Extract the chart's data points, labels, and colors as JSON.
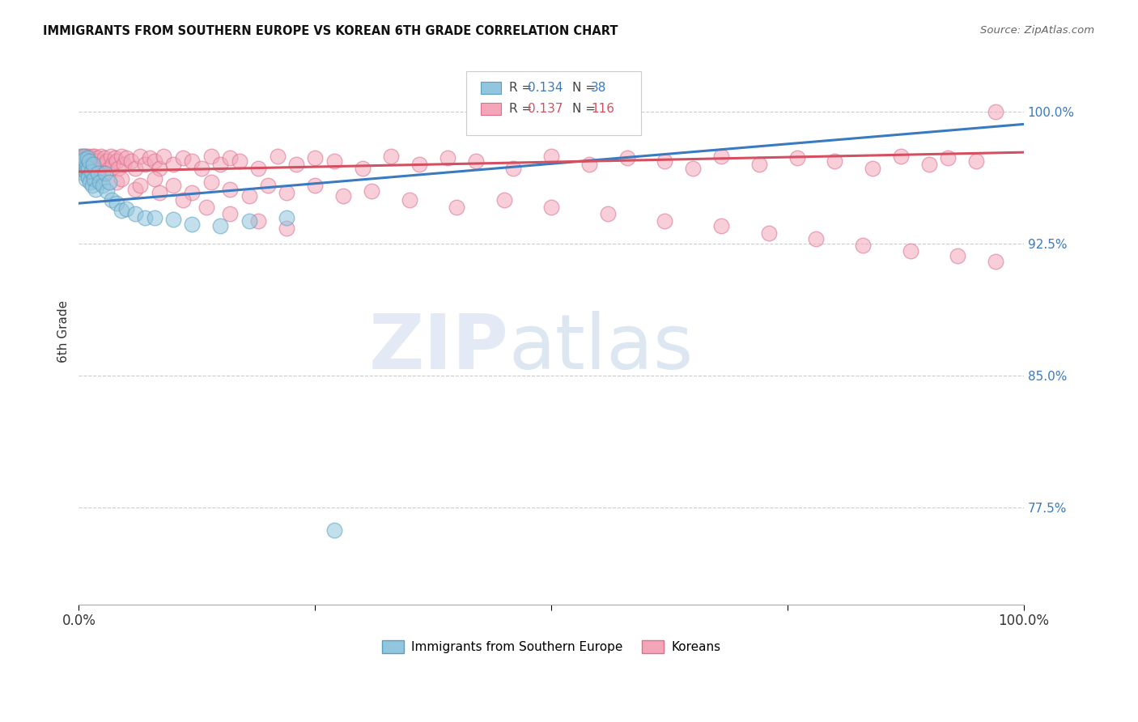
{
  "title": "IMMIGRANTS FROM SOUTHERN EUROPE VS KOREAN 6TH GRADE CORRELATION CHART",
  "source": "Source: ZipAtlas.com",
  "ylabel": "6th Grade",
  "xlim": [
    0.0,
    1.0
  ],
  "ylim": [
    0.72,
    1.03
  ],
  "yticks": [
    0.775,
    0.85,
    0.925,
    1.0
  ],
  "ytick_labels": [
    "77.5%",
    "85.0%",
    "92.5%",
    "100.0%"
  ],
  "legend_labels": [
    "Immigrants from Southern Europe",
    "Koreans"
  ],
  "blue_R": "0.134",
  "blue_N": "38",
  "pink_R": "0.137",
  "pink_N": "116",
  "blue_color": "#92c5de",
  "pink_color": "#f4a6b8",
  "blue_edge_color": "#5a9fc0",
  "pink_edge_color": "#d97090",
  "blue_line_color": "#3a7abf",
  "pink_line_color": "#d45060",
  "background_color": "#ffffff",
  "grid_color": "#cccccc",
  "blue_line_y0": 0.948,
  "blue_line_y1": 0.993,
  "pink_line_y0": 0.966,
  "pink_line_y1": 0.977,
  "blue_x": [
    0.002,
    0.003,
    0.004,
    0.005,
    0.005,
    0.006,
    0.007,
    0.007,
    0.008,
    0.009,
    0.01,
    0.01,
    0.011,
    0.012,
    0.013,
    0.014,
    0.015,
    0.016,
    0.018,
    0.02,
    0.022,
    0.025,
    0.028,
    0.03,
    0.032,
    0.035,
    0.04,
    0.045,
    0.05,
    0.06,
    0.07,
    0.08,
    0.1,
    0.12,
    0.15,
    0.18,
    0.22,
    0.27
  ],
  "blue_y": [
    0.97,
    0.972,
    0.968,
    0.975,
    0.965,
    0.973,
    0.966,
    0.962,
    0.969,
    0.974,
    0.968,
    0.963,
    0.972,
    0.96,
    0.966,
    0.958,
    0.97,
    0.962,
    0.956,
    0.965,
    0.96,
    0.958,
    0.965,
    0.955,
    0.96,
    0.95,
    0.948,
    0.944,
    0.945,
    0.942,
    0.94,
    0.94,
    0.939,
    0.936,
    0.935,
    0.938,
    0.94,
    0.762
  ],
  "pink_x": [
    0.001,
    0.002,
    0.002,
    0.003,
    0.003,
    0.004,
    0.005,
    0.005,
    0.006,
    0.006,
    0.007,
    0.008,
    0.009,
    0.01,
    0.01,
    0.011,
    0.012,
    0.013,
    0.014,
    0.015,
    0.016,
    0.017,
    0.018,
    0.019,
    0.02,
    0.022,
    0.024,
    0.025,
    0.027,
    0.03,
    0.032,
    0.034,
    0.036,
    0.038,
    0.04,
    0.042,
    0.045,
    0.048,
    0.05,
    0.055,
    0.06,
    0.065,
    0.07,
    0.075,
    0.08,
    0.085,
    0.09,
    0.1,
    0.11,
    0.12,
    0.13,
    0.14,
    0.15,
    0.16,
    0.17,
    0.19,
    0.21,
    0.23,
    0.25,
    0.27,
    0.3,
    0.33,
    0.36,
    0.39,
    0.42,
    0.46,
    0.5,
    0.54,
    0.58,
    0.62,
    0.65,
    0.68,
    0.72,
    0.76,
    0.8,
    0.84,
    0.87,
    0.9,
    0.92,
    0.95,
    0.97,
    0.04,
    0.06,
    0.08,
    0.1,
    0.12,
    0.14,
    0.16,
    0.18,
    0.2,
    0.22,
    0.25,
    0.28,
    0.31,
    0.35,
    0.4,
    0.45,
    0.5,
    0.56,
    0.62,
    0.68,
    0.73,
    0.78,
    0.83,
    0.88,
    0.93,
    0.97,
    0.025,
    0.045,
    0.065,
    0.085,
    0.11,
    0.135,
    0.16,
    0.19,
    0.22
  ],
  "pink_y": [
    0.975,
    0.972,
    0.968,
    0.975,
    0.97,
    0.974,
    0.972,
    0.968,
    0.975,
    0.97,
    0.975,
    0.972,
    0.968,
    0.975,
    0.97,
    0.974,
    0.972,
    0.968,
    0.975,
    0.972,
    0.968,
    0.975,
    0.97,
    0.974,
    0.972,
    0.968,
    0.975,
    0.97,
    0.974,
    0.972,
    0.968,
    0.975,
    0.97,
    0.974,
    0.972,
    0.968,
    0.975,
    0.97,
    0.974,
    0.972,
    0.968,
    0.975,
    0.97,
    0.974,
    0.972,
    0.968,
    0.975,
    0.97,
    0.974,
    0.972,
    0.968,
    0.975,
    0.97,
    0.974,
    0.972,
    0.968,
    0.975,
    0.97,
    0.974,
    0.972,
    0.968,
    0.975,
    0.97,
    0.974,
    0.972,
    0.968,
    0.975,
    0.97,
    0.974,
    0.972,
    0.968,
    0.975,
    0.97,
    0.974,
    0.972,
    0.968,
    0.975,
    0.97,
    0.974,
    0.972,
    1.0,
    0.96,
    0.956,
    0.962,
    0.958,
    0.954,
    0.96,
    0.956,
    0.952,
    0.958,
    0.954,
    0.958,
    0.952,
    0.955,
    0.95,
    0.946,
    0.95,
    0.946,
    0.942,
    0.938,
    0.935,
    0.931,
    0.928,
    0.924,
    0.921,
    0.918,
    0.915,
    0.965,
    0.962,
    0.958,
    0.954,
    0.95,
    0.946,
    0.942,
    0.938,
    0.934
  ]
}
